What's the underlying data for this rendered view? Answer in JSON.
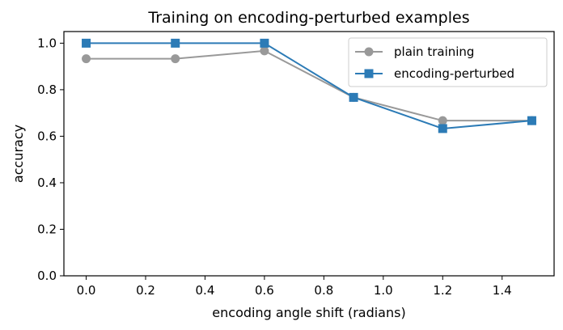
{
  "chart_data": {
    "type": "line",
    "title": "Training on encoding-perturbed examples",
    "xlabel": "encoding angle shift (radians)",
    "ylabel": "accuracy",
    "xlim": [
      -0.075,
      1.575
    ],
    "ylim": [
      0.0,
      1.05
    ],
    "xticks": [
      0.0,
      0.2,
      0.4,
      0.6,
      0.8,
      1.0,
      1.2,
      1.4
    ],
    "xtick_labels": [
      "0.0",
      "0.2",
      "0.4",
      "0.6",
      "0.8",
      "1.0",
      "1.2",
      "1.4"
    ],
    "yticks": [
      0.0,
      0.2,
      0.4,
      0.6,
      0.8,
      1.0
    ],
    "ytick_labels": [
      "0.0",
      "0.2",
      "0.4",
      "0.6",
      "0.8",
      "1.0"
    ],
    "grid": false,
    "legend_position": "top-right",
    "x": [
      0.0,
      0.3,
      0.6,
      0.9,
      1.2,
      1.5
    ],
    "series": [
      {
        "name": "plain training",
        "color": "#999999",
        "marker": "circle",
        "values": [
          0.933,
          0.933,
          0.967,
          0.767,
          0.667,
          0.667
        ]
      },
      {
        "name": "encoding-perturbed",
        "color": "#2c7bb6",
        "marker": "square",
        "values": [
          1.0,
          1.0,
          1.0,
          0.767,
          0.633,
          0.667
        ]
      }
    ]
  }
}
